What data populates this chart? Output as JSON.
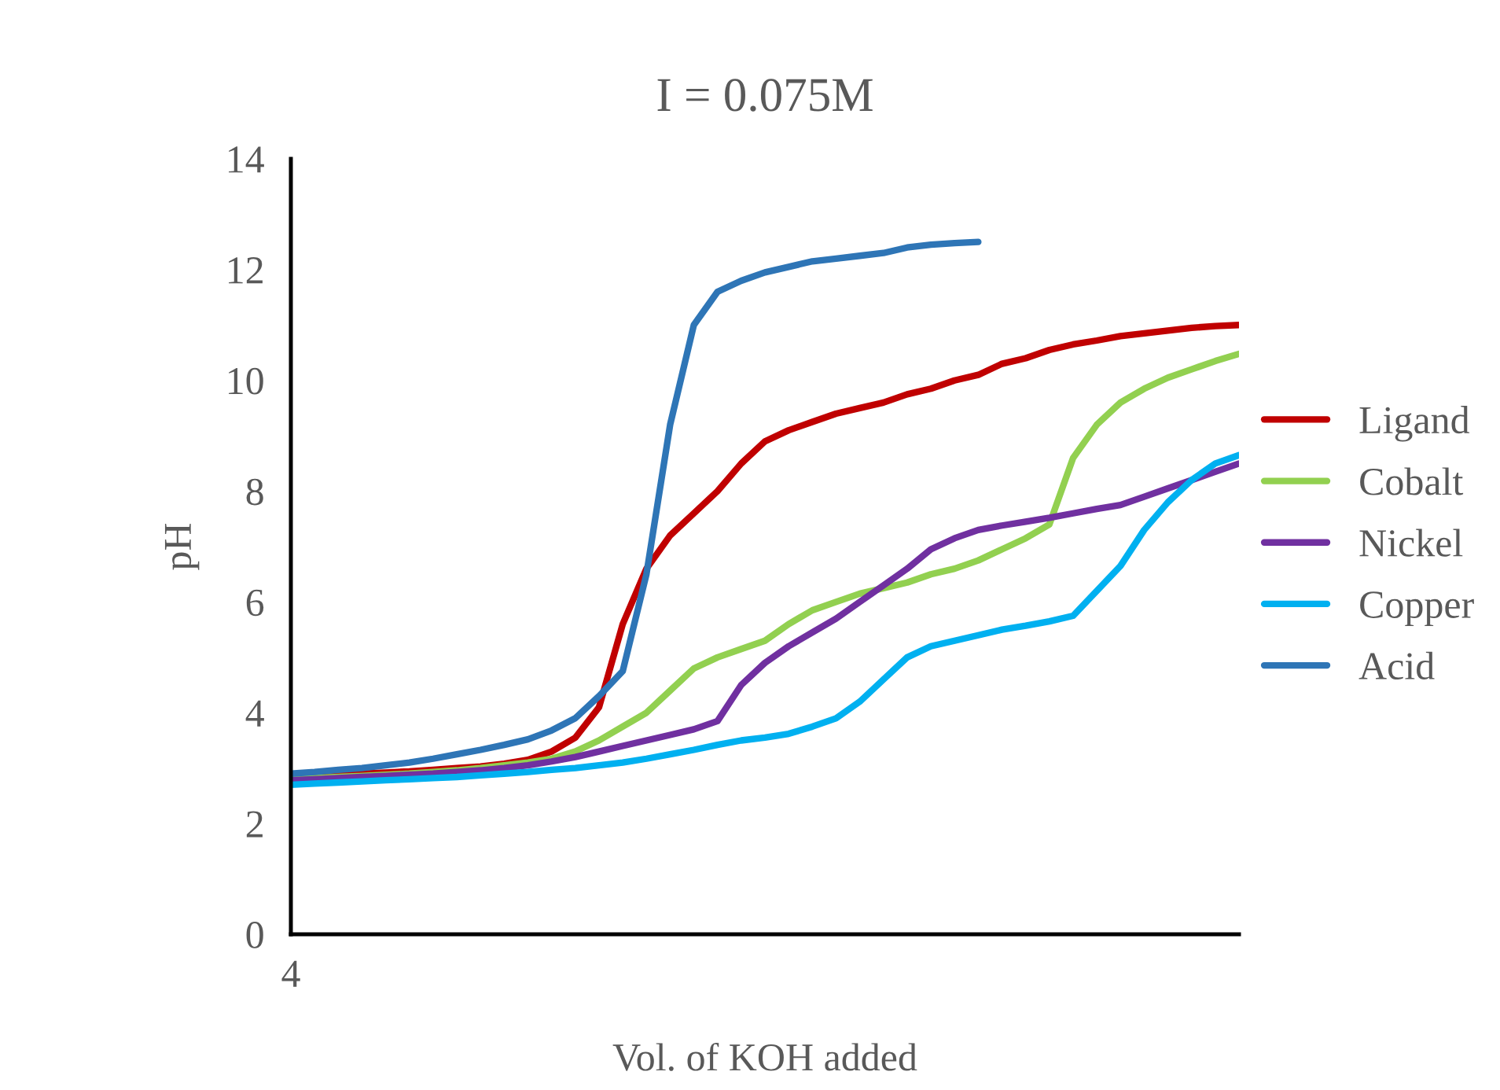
{
  "chart_data": {
    "type": "line",
    "title": "I = 0.075M",
    "xlabel": "Vol. of KOH added",
    "ylabel": "pH",
    "categories": [
      "4",
      null,
      null,
      null,
      null,
      null,
      null,
      null,
      null,
      null,
      null,
      null,
      null,
      null,
      null,
      null,
      null,
      null,
      null,
      null,
      null,
      null,
      null,
      null,
      null,
      null,
      null,
      null,
      null,
      null,
      null,
      null,
      null,
      null,
      null,
      null,
      null,
      null,
      null,
      null,
      null
    ],
    "series": [
      {
        "name": "Ligand",
        "color": "#c00000",
        "values": [
          2.85,
          2.87,
          2.88,
          2.9,
          2.92,
          2.94,
          2.97,
          3.0,
          3.03,
          3.08,
          3.15,
          3.3,
          3.55,
          4.1,
          5.6,
          6.6,
          7.2,
          7.6,
          8.0,
          8.5,
          8.9,
          9.1,
          9.25,
          9.4,
          9.5,
          9.6,
          9.75,
          9.85,
          10.0,
          10.1,
          10.3,
          10.4,
          10.55,
          10.65,
          10.72,
          10.8,
          10.85,
          10.9,
          10.95,
          10.98,
          11.0
        ]
      },
      {
        "name": "Cobalt",
        "color": "#92d050",
        "values": [
          2.8,
          2.82,
          2.84,
          2.86,
          2.88,
          2.9,
          2.93,
          2.96,
          3.0,
          3.05,
          3.1,
          3.17,
          3.3,
          3.5,
          3.75,
          4.0,
          4.4,
          4.8,
          5.0,
          5.15,
          5.3,
          5.6,
          5.85,
          6.0,
          6.15,
          6.25,
          6.35,
          6.5,
          6.6,
          6.75,
          6.95,
          7.15,
          7.4,
          8.6,
          9.2,
          9.6,
          9.85,
          10.05,
          10.2,
          10.35,
          10.48
        ]
      },
      {
        "name": "Nickel",
        "color": "#7030a0",
        "values": [
          2.78,
          2.8,
          2.82,
          2.84,
          2.86,
          2.88,
          2.9,
          2.93,
          2.96,
          3.0,
          3.05,
          3.12,
          3.2,
          3.3,
          3.4,
          3.5,
          3.6,
          3.7,
          3.85,
          4.5,
          4.9,
          5.2,
          5.45,
          5.7,
          6.0,
          6.3,
          6.6,
          6.95,
          7.15,
          7.3,
          7.38,
          7.45,
          7.52,
          7.6,
          7.68,
          7.75,
          7.9,
          8.05,
          8.2,
          8.35,
          8.5
        ]
      },
      {
        "name": "Copper",
        "color": "#00b0f0",
        "values": [
          2.7,
          2.72,
          2.74,
          2.76,
          2.78,
          2.8,
          2.82,
          2.84,
          2.87,
          2.9,
          2.93,
          2.97,
          3.0,
          3.05,
          3.1,
          3.17,
          3.25,
          3.33,
          3.42,
          3.5,
          3.55,
          3.62,
          3.75,
          3.9,
          4.2,
          4.6,
          5.0,
          5.2,
          5.3,
          5.4,
          5.5,
          5.57,
          5.65,
          5.75,
          6.2,
          6.65,
          7.3,
          7.8,
          8.2,
          8.5,
          8.65
        ]
      },
      {
        "name": "Acid",
        "color": "#2e75b6",
        "values": [
          2.9,
          2.93,
          2.97,
          3.0,
          3.05,
          3.1,
          3.17,
          3.25,
          3.33,
          3.42,
          3.52,
          3.68,
          3.9,
          4.3,
          4.75,
          6.5,
          9.2,
          11.0,
          11.6,
          11.8,
          11.95,
          12.05,
          12.15,
          12.2,
          12.25,
          12.3,
          12.4,
          12.45,
          12.48,
          12.5,
          null,
          null,
          null,
          null,
          null,
          null,
          null,
          null,
          null,
          null,
          null
        ]
      }
    ],
    "ylim": [
      0,
      14
    ],
    "yticks": [
      0,
      2,
      4,
      6,
      8,
      10,
      12,
      14
    ],
    "grid": false,
    "legend": "right",
    "marker": "none",
    "line_style": "solid"
  }
}
